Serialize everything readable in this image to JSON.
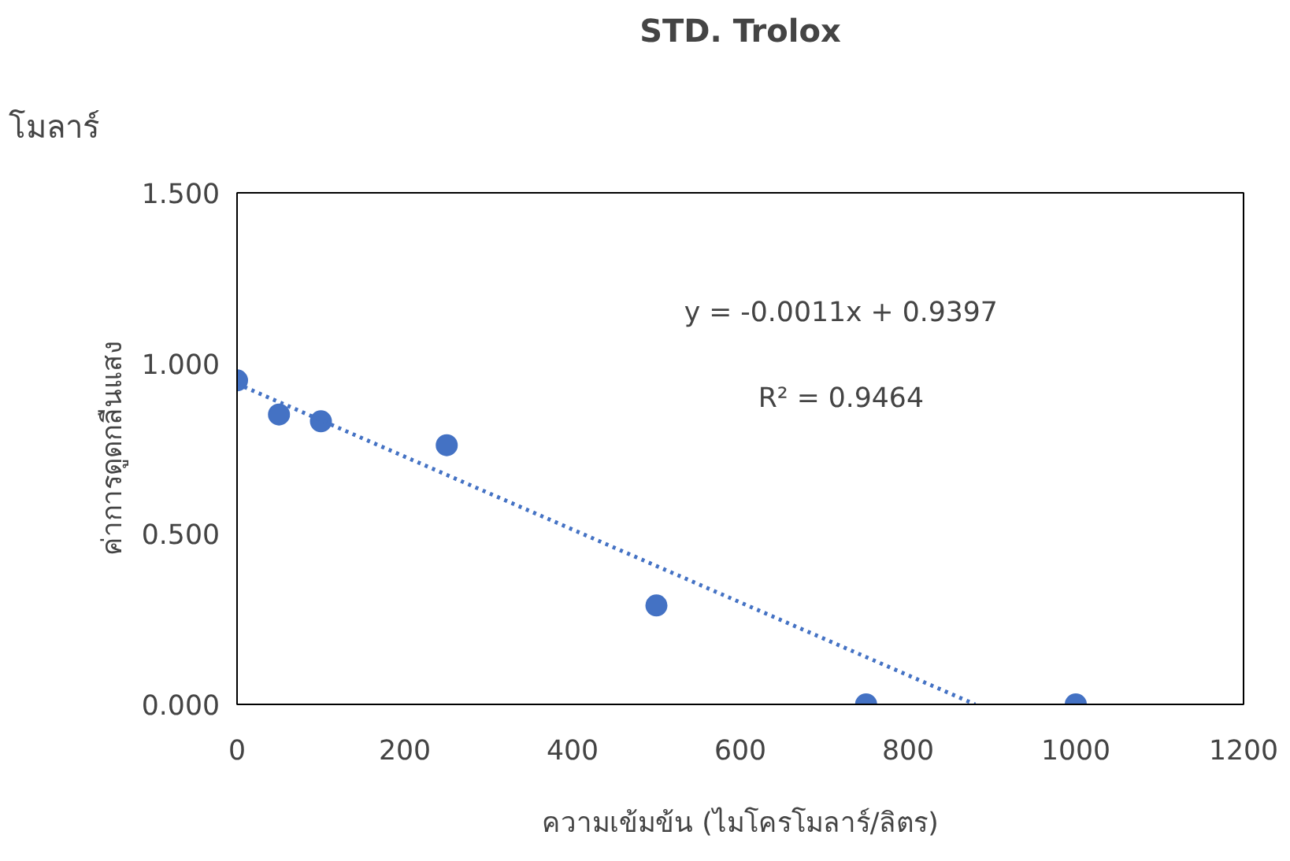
{
  "chart_data": {
    "type": "scatter",
    "title": "STD. Trolox",
    "xlabel": "ความเข้มข้น (ไมโครโมลาร์/ลิตร)",
    "ylabel": "ค่าการดูดกลืนแสง",
    "series": [
      {
        "type": "scatter",
        "color": "#4472c4",
        "x": [
          0,
          50,
          100,
          250,
          500,
          750,
          1000
        ],
        "values": [
          0.95,
          0.85,
          0.83,
          0.76,
          0.29,
          0.0,
          0.0
        ],
        "marker": "circle"
      },
      {
        "type": "line",
        "color": "#4472c4",
        "x": [
          0,
          880
        ],
        "values": [
          0.94,
          0.0
        ],
        "line_style": "dotted",
        "marker": "none"
      }
    ],
    "xlim": [
      0,
      1200
    ],
    "xticks": [
      0,
      200,
      400,
      600,
      800,
      1000,
      1200
    ],
    "ylim": [
      0,
      1.5
    ],
    "yticks": [
      {
        "value": 0,
        "label": "0.000"
      },
      {
        "value": 0.5,
        "label": "0.500"
      },
      {
        "value": 1.0,
        "label": "1.000"
      },
      {
        "value": 1.5,
        "label": "1.500"
      }
    ],
    "grid": false,
    "annotations": [
      "y = -0.0011x + 0.9397",
      "R² = 0.9464",
      "โมลาร์"
    ]
  }
}
